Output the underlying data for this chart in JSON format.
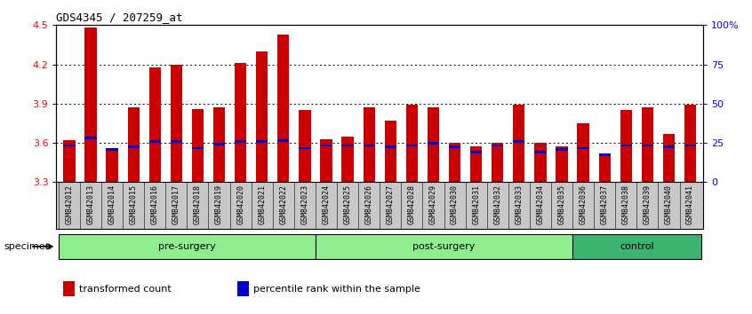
{
  "title": "GDS4345 / 207259_at",
  "categories": [
    "GSM842012",
    "GSM842013",
    "GSM842014",
    "GSM842015",
    "GSM842016",
    "GSM842017",
    "GSM842018",
    "GSM842019",
    "GSM842020",
    "GSM842021",
    "GSM842022",
    "GSM842023",
    "GSM842024",
    "GSM842025",
    "GSM842026",
    "GSM842027",
    "GSM842028",
    "GSM842029",
    "GSM842030",
    "GSM842031",
    "GSM842032",
    "GSM842033",
    "GSM842034",
    "GSM842035",
    "GSM842036",
    "GSM842037",
    "GSM842038",
    "GSM842039",
    "GSM842040",
    "GSM842041"
  ],
  "red_values": [
    3.62,
    4.48,
    3.55,
    3.87,
    4.18,
    4.2,
    3.86,
    3.87,
    4.21,
    4.3,
    4.43,
    3.85,
    3.63,
    3.65,
    3.87,
    3.77,
    3.89,
    3.87,
    3.6,
    3.57,
    3.6,
    3.89,
    3.6,
    3.57,
    3.75,
    3.52,
    3.85,
    3.87,
    3.67,
    3.89
  ],
  "blue_values": [
    3.57,
    3.63,
    3.54,
    3.56,
    3.6,
    3.6,
    3.55,
    3.58,
    3.6,
    3.6,
    3.61,
    3.55,
    3.57,
    3.57,
    3.57,
    3.56,
    3.57,
    3.59,
    3.56,
    3.52,
    3.57,
    3.6,
    3.52,
    3.54,
    3.55,
    3.5,
    3.57,
    3.57,
    3.56,
    3.57
  ],
  "groups": [
    {
      "label": "pre-surgery",
      "start": 0,
      "end": 11,
      "color": "#90EE90"
    },
    {
      "label": "post-surgery",
      "start": 12,
      "end": 23,
      "color": "#90EE90"
    },
    {
      "label": "control",
      "start": 24,
      "end": 29,
      "color": "#3CB371"
    }
  ],
  "ymin": 3.3,
  "ymax": 4.5,
  "yticks": [
    3.3,
    3.6,
    3.9,
    4.2,
    4.5
  ],
  "right_yticks": [
    0,
    25,
    50,
    75,
    100
  ],
  "right_ylabels": [
    "0",
    "25",
    "50",
    "75",
    "100%"
  ],
  "grid_values": [
    3.6,
    3.9,
    4.2
  ],
  "bar_color": "#CC0000",
  "blue_color": "#0000CC",
  "group_bg_light": "#90EE90",
  "group_bg_dark": "#3CB371",
  "specimen_label": "specimen",
  "legend_items": [
    {
      "label": "transformed count",
      "color": "#CC0000"
    },
    {
      "label": "percentile rank within the sample",
      "color": "#0000CC"
    }
  ]
}
